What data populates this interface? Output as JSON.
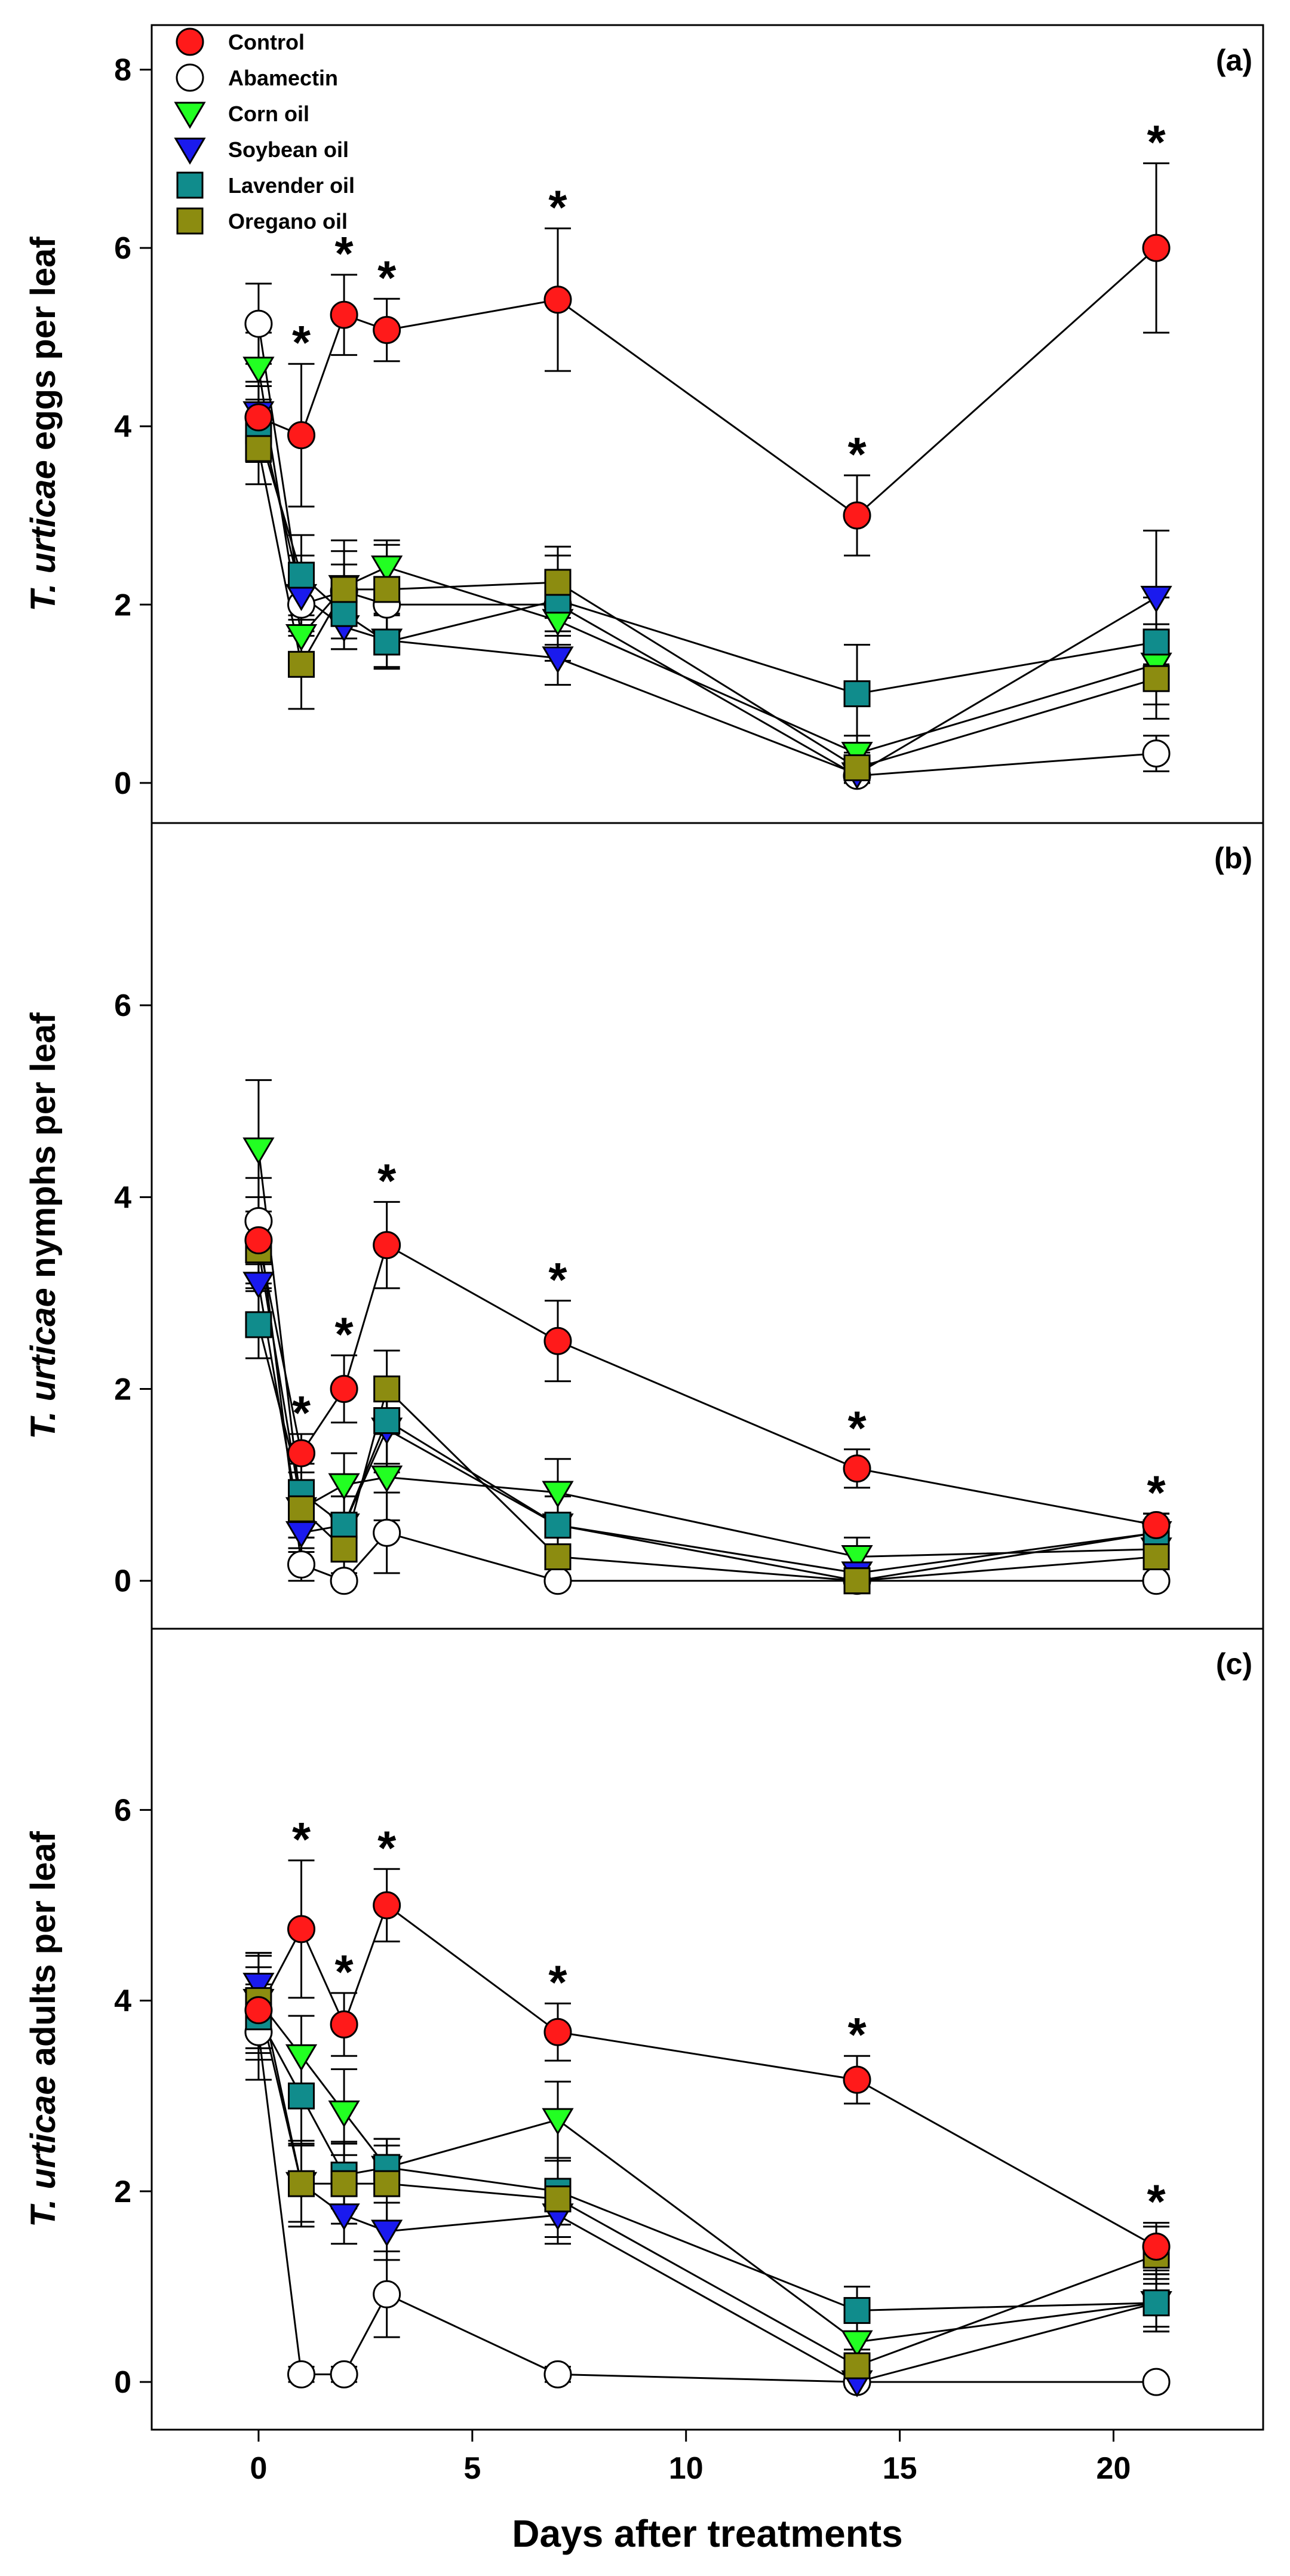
{
  "chart_data": {
    "type": "line",
    "x_label": "Days after treatments",
    "x_ticks": [
      0,
      5,
      10,
      15,
      20
    ],
    "xlim": [
      -2.5,
      23.5
    ],
    "legend": {
      "placement": "top-left",
      "entries": [
        {
          "name": "Control",
          "marker": "circle",
          "color": "#ff1a1a"
        },
        {
          "name": "Abamectin",
          "marker": "circle",
          "color": "#ffffff"
        },
        {
          "name": "Corn oil",
          "marker": "triangle-down",
          "color": "#22ff22"
        },
        {
          "name": "Soybean oil",
          "marker": "triangle-down",
          "color": "#1a1aee"
        },
        {
          "name": "Lavender oil",
          "marker": "square",
          "color": "#108c8c"
        },
        {
          "name": "Oregano oil",
          "marker": "square",
          "color": "#8c8c10"
        }
      ]
    },
    "panels": [
      {
        "label": "(a)",
        "ylabel_italic": "T. urticae",
        "ylabel_rest": " eggs per leaf",
        "ylim": [
          -0.45,
          8.5
        ],
        "y_ticks": [
          0,
          2,
          4,
          6,
          8
        ],
        "x": [
          0,
          1,
          2,
          3,
          7,
          14,
          21
        ],
        "series": [
          {
            "name": "Control",
            "values": [
              4.1,
              3.9,
              5.25,
              5.08,
              5.42,
              3.0,
              6.0
            ],
            "err": [
              0.35,
              0.8,
              0.45,
              0.35,
              0.8,
              0.45,
              0.95
            ]
          },
          {
            "name": "Abamectin",
            "values": [
              5.15,
              2.0,
              2.15,
              2.0,
              2.0,
              0.08,
              0.33
            ],
            "err": [
              0.45,
              0.3,
              0.3,
              0.3,
              0.35,
              0.08,
              0.2
            ]
          },
          {
            "name": "Corn oil",
            "values": [
              4.65,
              1.65,
              2.2,
              2.42,
              1.82,
              0.33,
              1.33
            ],
            "err": [
              0.4,
              0.35,
              0.4,
              0.3,
              0.45,
              0.2,
              0.45
            ]
          },
          {
            "name": "Soybean oil",
            "values": [
              4.15,
              2.1,
              1.75,
              1.6,
              1.4,
              0.1,
              2.08
            ],
            "err": [
              0.35,
              0.45,
              0.25,
              0.3,
              0.3,
              0.1,
              0.75
            ]
          },
          {
            "name": "Lavender oil",
            "values": [
              3.95,
              2.33,
              1.9,
              1.58,
              2.05,
              1.0,
              1.58
            ],
            "err": [
              0.35,
              0.45,
              0.4,
              0.3,
              0.5,
              0.55,
              0.5
            ]
          },
          {
            "name": "Oregano oil",
            "values": [
              3.75,
              1.33,
              2.17,
              2.17,
              2.25,
              0.17,
              1.17
            ],
            "err": [
              0.4,
              0.5,
              0.55,
              0.5,
              0.4,
              0.17,
              0.45
            ]
          }
        ],
        "stars": [
          1,
          2,
          3,
          7,
          14,
          21
        ]
      },
      {
        "label": "(b)",
        "ylabel_italic": "T. urticae",
        "ylabel_rest": " nymphs per leaf",
        "ylim": [
          -0.5,
          7.9
        ],
        "y_ticks": [
          0,
          2,
          4,
          6
        ],
        "x": [
          0,
          1,
          2,
          3,
          7,
          14,
          21
        ],
        "series": [
          {
            "name": "Control",
            "values": [
              3.55,
              1.33,
              2.0,
              3.5,
              2.5,
              1.17,
              0.58
            ],
            "err": [
              0.45,
              0.2,
              0.35,
              0.45,
              0.42,
              0.2,
              0.12
            ]
          },
          {
            "name": "Abamectin",
            "values": [
              3.75,
              0.17,
              0.0,
              0.5,
              0.0,
              0.0,
              0.0
            ],
            "err": [
              0.45,
              0.17,
              0.05,
              0.42,
              0.05,
              0.05,
              0.05
            ]
          },
          {
            "name": "Corn oil",
            "values": [
              4.5,
              0.75,
              1.0,
              1.08,
              0.92,
              0.25,
              0.33
            ],
            "err": [
              0.72,
              0.3,
              0.33,
              0.45,
              0.35,
              0.2,
              0.2
            ]
          },
          {
            "name": "Soybean oil",
            "values": [
              3.1,
              0.5,
              0.58,
              1.58,
              0.58,
              0.08,
              0.5
            ],
            "err": [
              0.3,
              0.2,
              0.3,
              0.45,
              0.3,
              0.08,
              0.2
            ]
          },
          {
            "name": "Lavender oil",
            "values": [
              2.67,
              0.92,
              0.58,
              1.67,
              0.58,
              0.0,
              0.5
            ],
            "err": [
              0.35,
              0.3,
              0.3,
              0.45,
              0.3,
              0.05,
              0.2
            ]
          },
          {
            "name": "Oregano oil",
            "values": [
              3.45,
              0.75,
              0.33,
              2.0,
              0.25,
              0.0,
              0.25
            ],
            "err": [
              0.4,
              0.3,
              0.25,
              0.4,
              0.2,
              0.05,
              0.2
            ]
          }
        ],
        "stars": [
          1,
          2,
          3,
          7,
          14,
          21
        ]
      },
      {
        "label": "(c)",
        "ylabel_italic": "T. urticae",
        "ylabel_rest": " adults per leaf",
        "ylim": [
          -0.5,
          7.9
        ],
        "y_ticks": [
          0,
          2,
          4,
          6
        ],
        "x": [
          0,
          1,
          2,
          3,
          7,
          14,
          21
        ],
        "series": [
          {
            "name": "Control",
            "values": [
              3.9,
              4.75,
              3.75,
              5.0,
              3.67,
              3.17,
              1.42
            ],
            "err": [
              0.45,
              0.72,
              0.33,
              0.38,
              0.3,
              0.25,
              0.25
            ]
          },
          {
            "name": "Abamectin",
            "values": [
              3.67,
              0.08,
              0.08,
              0.92,
              0.08,
              0.0,
              0.0
            ],
            "err": [
              0.5,
              0.08,
              0.08,
              0.45,
              0.08,
              0.05,
              0.05
            ]
          },
          {
            "name": "Corn oil",
            "values": [
              4.0,
              3.42,
              2.83,
              2.25,
              2.75,
              0.42,
              0.83
            ],
            "err": [
              0.5,
              0.42,
              0.45,
              0.3,
              0.4,
              0.3,
              0.25
            ]
          },
          {
            "name": "Soybean oil",
            "values": [
              4.17,
              2.08,
              1.75,
              1.58,
              1.75,
              0.0,
              0.83
            ],
            "err": [
              0.3,
              0.4,
              0.3,
              0.3,
              0.3,
              0.05,
              0.3
            ]
          },
          {
            "name": "Lavender oil",
            "values": [
              3.83,
              3.0,
              2.17,
              2.25,
              2.0,
              0.75,
              0.83
            ],
            "err": [
              0.45,
              0.5,
              0.35,
              0.3,
              0.35,
              0.25,
              0.3
            ]
          },
          {
            "name": "Oregano oil",
            "values": [
              4.0,
              2.08,
              2.08,
              2.08,
              1.92,
              0.17,
              1.33
            ],
            "err": [
              0.5,
              0.45,
              0.42,
              0.4,
              0.4,
              0.17,
              0.3
            ]
          }
        ],
        "stars": [
          1,
          2,
          3,
          7,
          14,
          21
        ]
      }
    ]
  }
}
